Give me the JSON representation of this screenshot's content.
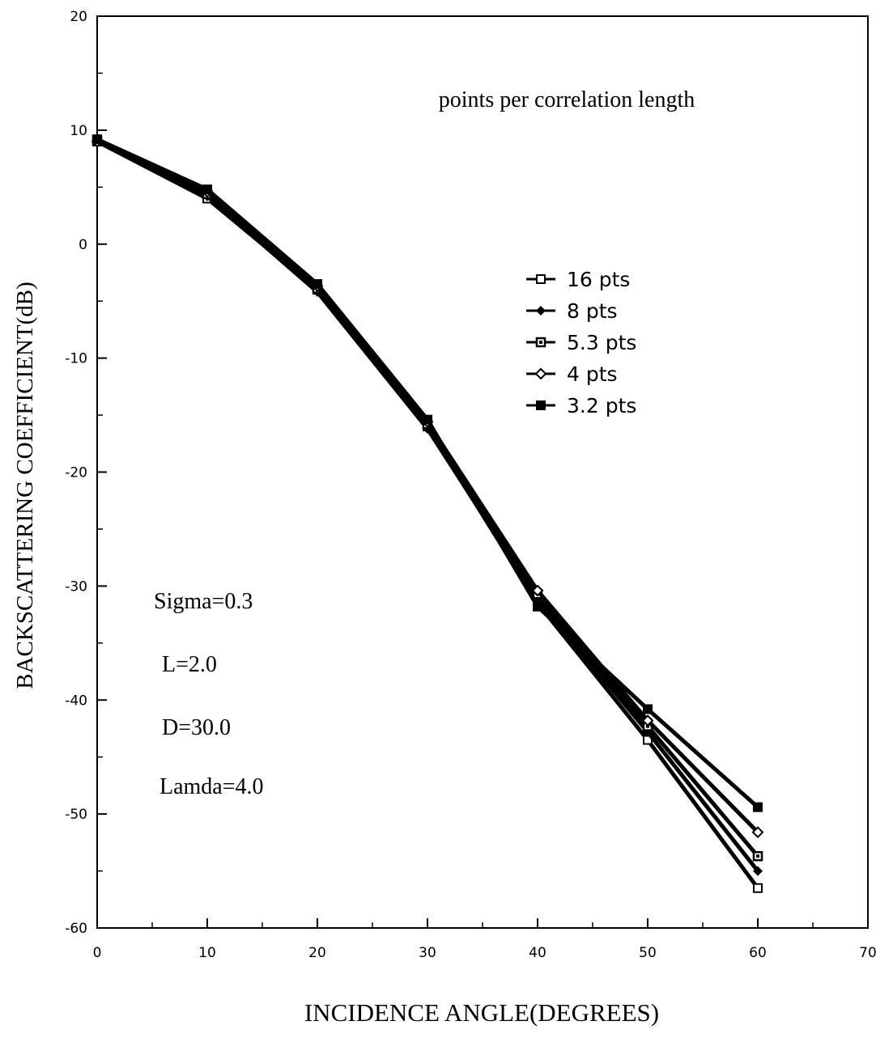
{
  "chart_data": {
    "type": "line",
    "title": "",
    "xlabel": "INCIDENCE ANGLE(DEGREES)",
    "ylabel": "BACKSCATTERING  COEFFICIENT(dB)",
    "xlim": [
      0,
      70
    ],
    "ylim": [
      -60,
      20
    ],
    "x_ticks": [
      0,
      10,
      20,
      30,
      40,
      50,
      60,
      70
    ],
    "y_ticks": [
      20,
      10,
      0,
      -10,
      -20,
      -30,
      -40,
      -50,
      -60
    ],
    "x_tick_labels": [
      "0",
      "10",
      "20",
      "30",
      "40",
      "50",
      "60",
      "70"
    ],
    "y_tick_labels": [
      "20",
      "10",
      "0",
      "-10",
      "-20",
      "-30",
      "-40",
      "-50",
      "-60"
    ],
    "grid": false,
    "legend_position": "upper-right",
    "legend_title": "points per correlation length",
    "x": [
      0,
      10,
      20,
      30,
      40,
      50,
      60
    ],
    "series": [
      {
        "name": "16 pts",
        "marker": "open-square",
        "values": [
          9.0,
          4.0,
          -4.0,
          -16.0,
          -31.5,
          -43.5,
          -56.5
        ]
      },
      {
        "name": "8 pts",
        "marker": "filled-diamond",
        "values": [
          9.0,
          4.2,
          -4.2,
          -16.2,
          -31.2,
          -42.8,
          -55.0
        ]
      },
      {
        "name": "5.3 pts",
        "marker": "dotted-square",
        "values": [
          9.1,
          4.4,
          -3.9,
          -15.8,
          -30.7,
          -42.3,
          -53.7
        ]
      },
      {
        "name": "4 pts",
        "marker": "open-diamond",
        "values": [
          9.0,
          4.6,
          -3.7,
          -15.6,
          -30.4,
          -41.8,
          -51.6
        ]
      },
      {
        "name": "3.2 pts",
        "marker": "filled-square",
        "values": [
          9.2,
          4.8,
          -3.5,
          -15.4,
          -31.8,
          -40.8,
          -49.4
        ]
      }
    ],
    "annotations": [
      "Sigma=0.3",
      "L=2.0",
      "D=30.0",
      "Lamda=4.0"
    ]
  }
}
